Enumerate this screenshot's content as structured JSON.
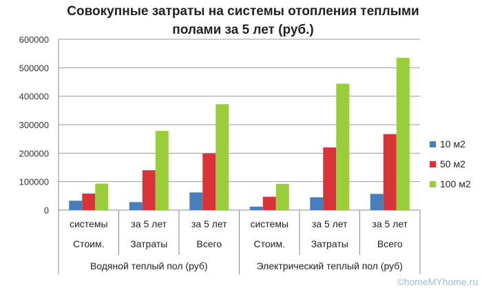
{
  "chart_data": {
    "type": "bar",
    "title_lines": [
      "Совокупные затраты на системы отопления теплыми",
      "полами за 5 лет (руб.)"
    ],
    "categories": [
      [
        "системы",
        "Стоим."
      ],
      [
        "за 5 лет",
        "Затраты"
      ],
      [
        "за 5 лет",
        "Всего"
      ],
      [
        "системы",
        "Стоим."
      ],
      [
        "за 5 лет",
        "Затраты"
      ],
      [
        "за 5 лет",
        "Всего"
      ]
    ],
    "groups": [
      {
        "label": "Водяной теплый пол (руб)",
        "start": 0,
        "end": 3
      },
      {
        "label": "Электрический теплый пол (руб)",
        "start": 3,
        "end": 6
      }
    ],
    "series": [
      {
        "name": "10 м2",
        "color": "#4a7ebb",
        "values": [
          33000,
          28000,
          62000,
          12000,
          45000,
          57000
        ]
      },
      {
        "name": "50 м2",
        "color": "#d9333a",
        "values": [
          58000,
          140000,
          199000,
          47000,
          220000,
          267000
        ]
      },
      {
        "name": "100 м2",
        "color": "#9acd3c",
        "values": [
          93000,
          278000,
          372000,
          92000,
          444000,
          535000
        ]
      }
    ],
    "y_ticks": [
      0,
      100000,
      200000,
      300000,
      400000,
      500000,
      600000
    ],
    "ylim": [
      0,
      600000
    ],
    "grid": true,
    "legend_position": "right"
  },
  "watermark": "©homeMYhome.ru"
}
